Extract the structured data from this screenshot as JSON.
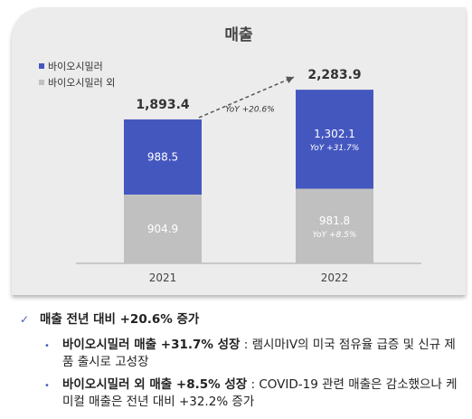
{
  "chart_data": {
    "type": "bar",
    "stacked": true,
    "title": "매출",
    "categories": [
      "2021",
      "2022"
    ],
    "series": [
      {
        "name": "바이오시밀러 외",
        "color": "#c0c0c0",
        "values": [
          904.9,
          981.8
        ]
      },
      {
        "name": "바이오시밀러",
        "color": "#4457bf",
        "values": [
          988.5,
          1302.1
        ]
      }
    ],
    "totals": [
      1893.4,
      2283.9
    ],
    "total_labels": [
      "1,893.4",
      "2,283.9"
    ],
    "value_labels": [
      [
        "904.9",
        "981.8"
      ],
      [
        "988.5",
        "1,302.1"
      ]
    ],
    "yoy_labels": [
      [
        "",
        "YoY +8.5%"
      ],
      [
        "",
        "YoY +31.7%"
      ]
    ],
    "growth_annotation": "YoY +20.6%",
    "ylim": [
      0,
      2500
    ],
    "legend_position": "top-left",
    "grid": false
  },
  "bullets": {
    "main": "매출 전년 대비 +20.6% 증가",
    "main_mark": "✓",
    "sub_mark": "•",
    "subs": [
      {
        "bold": "바이오시밀러 매출 +31.7% 성장",
        "rest": " : 램시마IV의 미국 점유율 급증 및 신규 제품 출시로 고성장"
      },
      {
        "bold": "바이오시밀러 외 매출 +8.5% 성장",
        "rest": " : COVID-19 관련 매출은 감소했으나 케미컬 매출은 전년 대비 +32.2% 증가"
      }
    ]
  }
}
